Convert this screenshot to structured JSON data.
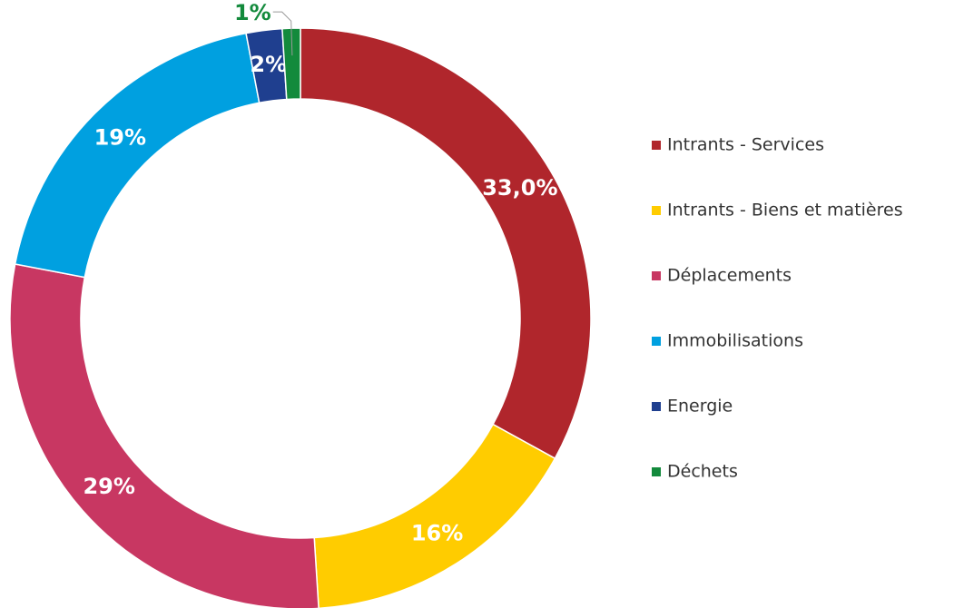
{
  "chart_data": {
    "type": "pie",
    "donut": true,
    "categories": [
      "Intrants - Services",
      "Intrants - Biens et matières",
      "Déplacements",
      "Immobilisations",
      "Energie",
      "Déchets"
    ],
    "values": [
      33.0,
      16,
      29,
      19,
      2,
      1
    ],
    "value_labels": [
      "33,0%",
      "16%",
      "29%",
      "19%",
      "2%",
      "1%"
    ],
    "colors": [
      "#b0262c",
      "#ffcc00",
      "#c83762",
      "#00a0e0",
      "#1f3f8f",
      "#138a3c"
    ],
    "legend": "right"
  }
}
